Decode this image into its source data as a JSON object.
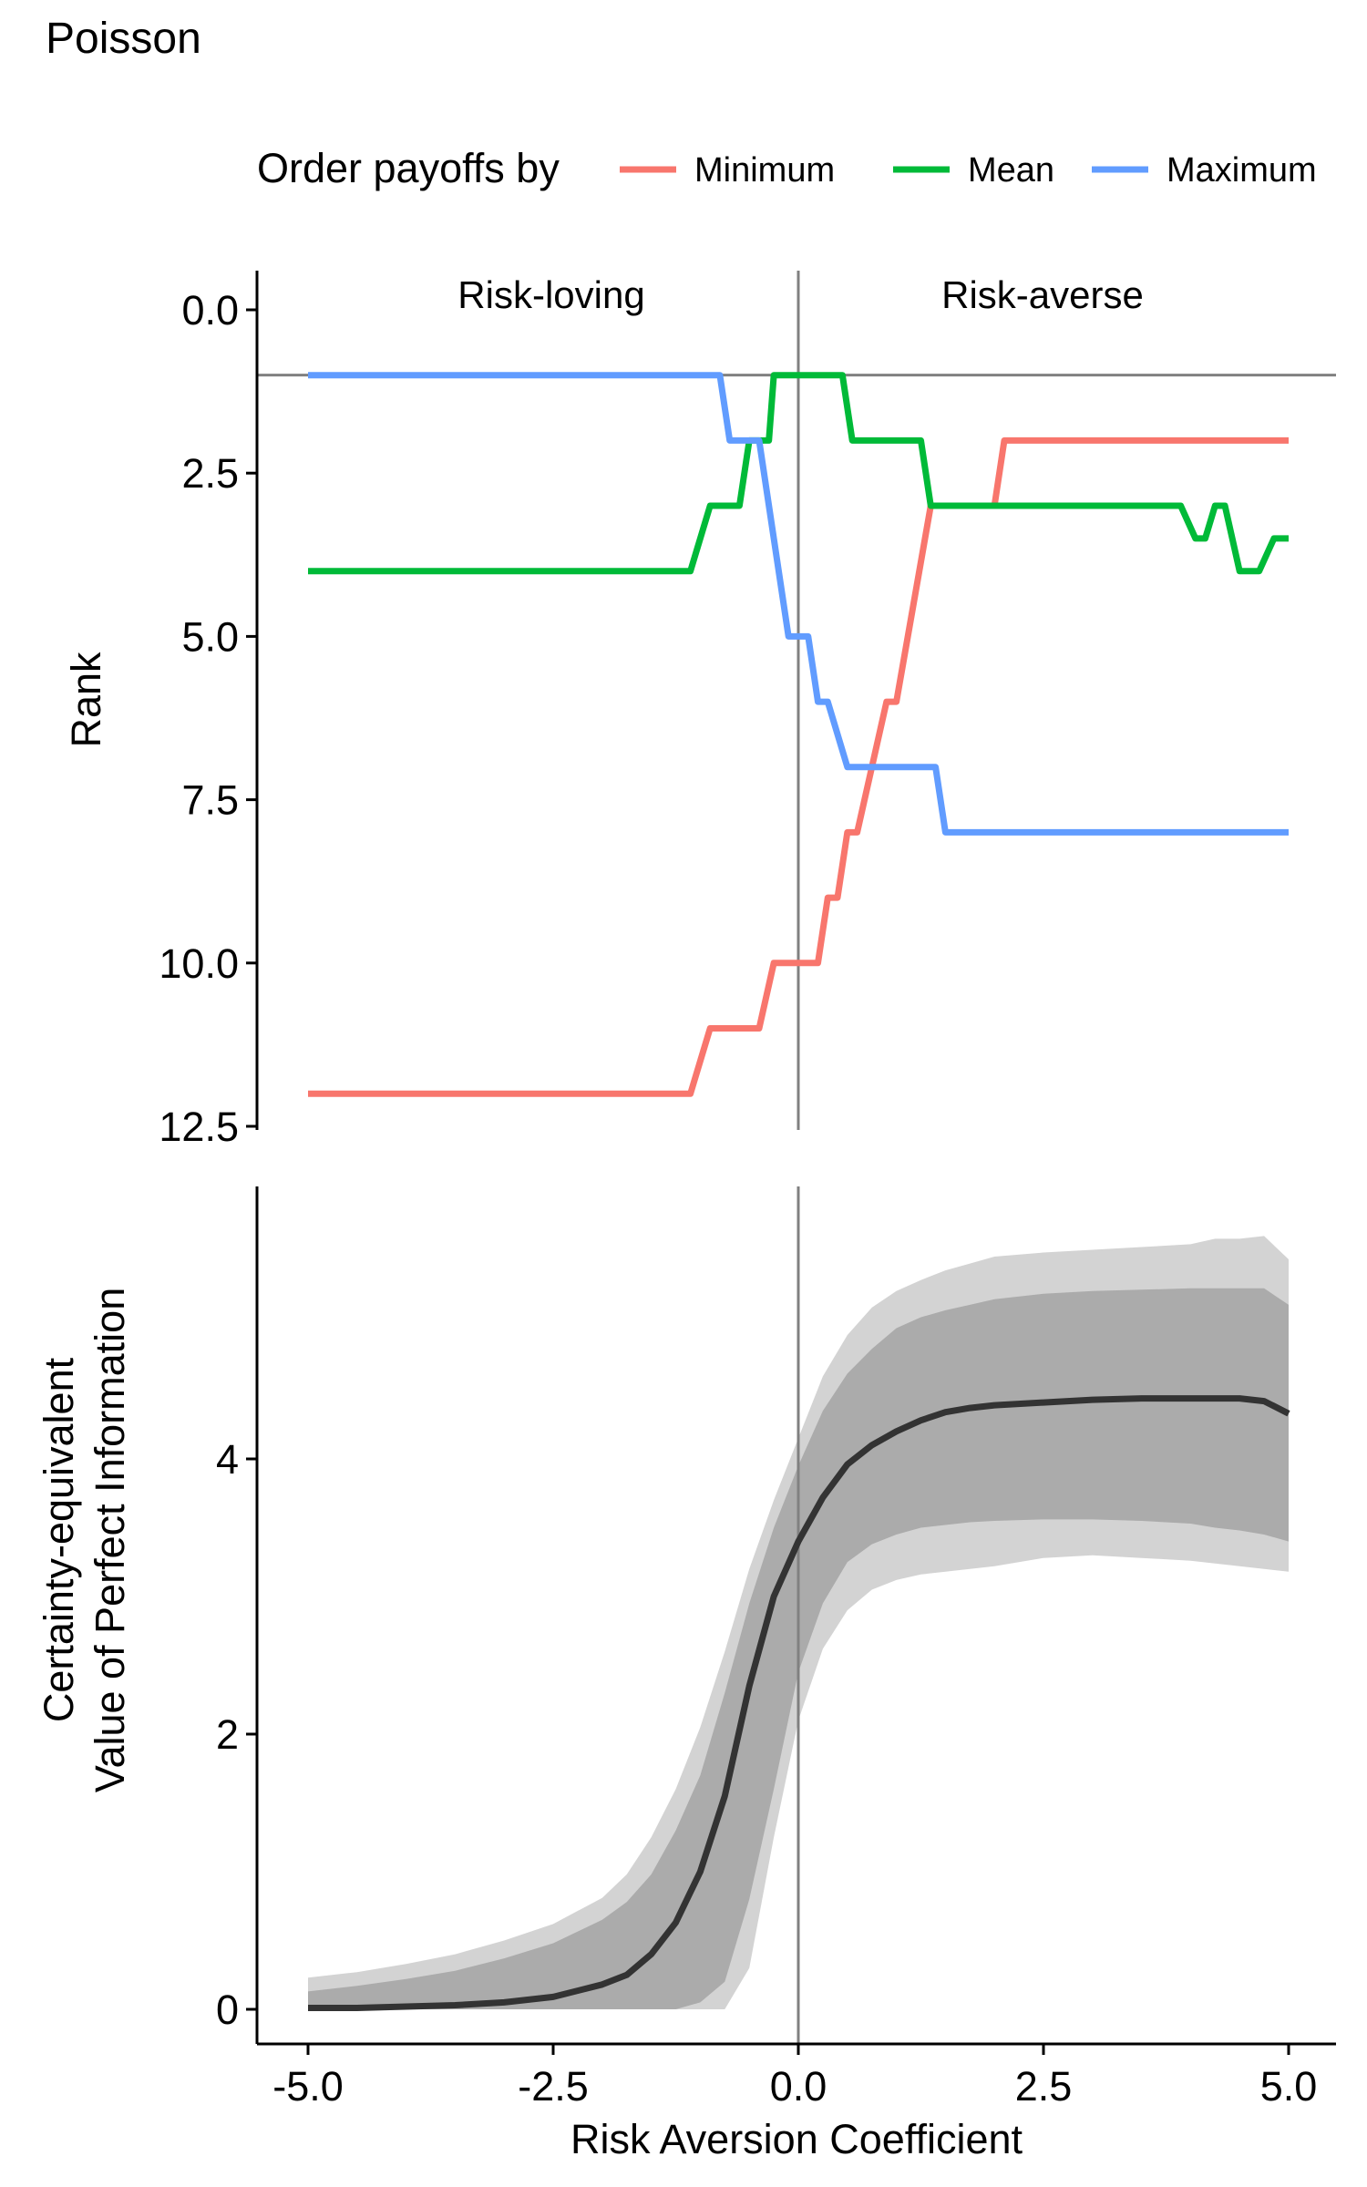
{
  "chart_data": [
    {
      "type": "line",
      "title": "Poisson",
      "legend": {
        "title": "Order payoffs by",
        "position": "top",
        "entries": [
          {
            "name": "Minimum",
            "color": "#F8766D"
          },
          {
            "name": "Mean",
            "color": "#00BA38"
          },
          {
            "name": "Maximum",
            "color": "#619CFF"
          }
        ]
      },
      "xlabel": "",
      "ylabel": "Rank",
      "xlim": [
        -5.0,
        5.0
      ],
      "ylim": [
        0.0,
        12.5
      ],
      "y_reversed": true,
      "yticks": [
        "0.0",
        "2.5",
        "5.0",
        "7.5",
        "10.0",
        "12.5"
      ],
      "annotations": [
        "Risk-loving",
        "Risk-averse"
      ],
      "reference_lines": {
        "vertical_x": 0.0,
        "horizontal_y": 1.0
      },
      "series": [
        {
          "name": "Minimum",
          "color": "#F8766D",
          "points": [
            [
              -5.0,
              12
            ],
            [
              -1.1,
              12
            ],
            [
              -0.9,
              11
            ],
            [
              -0.4,
              11
            ],
            [
              -0.25,
              10
            ],
            [
              0.2,
              10
            ],
            [
              0.3,
              9
            ],
            [
              0.4,
              9
            ],
            [
              0.5,
              8
            ],
            [
              0.6,
              8
            ],
            [
              0.9,
              6
            ],
            [
              1.0,
              6
            ],
            [
              1.35,
              3
            ],
            [
              2.0,
              3
            ],
            [
              2.1,
              2
            ],
            [
              5.0,
              2
            ]
          ]
        },
        {
          "name": "Mean",
          "color": "#00BA38",
          "points": [
            [
              -5.0,
              4
            ],
            [
              -1.1,
              4
            ],
            [
              -0.9,
              3
            ],
            [
              -0.6,
              3
            ],
            [
              -0.5,
              2
            ],
            [
              -0.3,
              2
            ],
            [
              -0.25,
              1
            ],
            [
              0.45,
              1
            ],
            [
              0.55,
              2
            ],
            [
              1.25,
              2
            ],
            [
              1.35,
              3
            ],
            [
              3.9,
              3
            ],
            [
              4.05,
              3.5
            ],
            [
              4.15,
              3.5
            ],
            [
              4.25,
              3
            ],
            [
              4.35,
              3
            ],
            [
              4.5,
              4
            ],
            [
              4.7,
              4
            ],
            [
              4.85,
              3.5
            ],
            [
              5.0,
              3.5
            ]
          ]
        },
        {
          "name": "Maximum",
          "color": "#619CFF",
          "points": [
            [
              -5.0,
              1
            ],
            [
              -0.8,
              1
            ],
            [
              -0.7,
              2
            ],
            [
              -0.4,
              2
            ],
            [
              -0.1,
              5
            ],
            [
              0.1,
              5
            ],
            [
              0.2,
              6
            ],
            [
              0.3,
              6
            ],
            [
              0.5,
              7
            ],
            [
              1.4,
              7
            ],
            [
              1.5,
              8
            ],
            [
              5.0,
              8
            ]
          ]
        }
      ]
    },
    {
      "type": "area",
      "title": "",
      "xlabel": "Risk Aversion Coefficient",
      "ylabel": "Certainty-equivalent\nValue of Perfect Information",
      "ylabel_lines": [
        "Certainty-equivalent",
        "Value of Perfect Information"
      ],
      "xlim": [
        -5.0,
        5.0
      ],
      "xticks": [
        "-5.0",
        "-2.5",
        "0.0",
        "2.5",
        "5.0"
      ],
      "yticks": [
        "0",
        "2",
        "4"
      ],
      "reference_lines": {
        "vertical_x": 0.0
      },
      "x": [
        -5.0,
        -4.5,
        -4.0,
        -3.5,
        -3.0,
        -2.5,
        -2.0,
        -1.75,
        -1.5,
        -1.25,
        -1.0,
        -0.75,
        -0.5,
        -0.25,
        0.0,
        0.25,
        0.5,
        0.75,
        1.0,
        1.25,
        1.5,
        1.75,
        2.0,
        2.5,
        3.0,
        3.5,
        4.0,
        4.25,
        4.5,
        4.75,
        5.0
      ],
      "series": [
        {
          "name": "",
          "role": "outer_band_upper",
          "values": [
            0.23,
            0.27,
            0.33,
            0.4,
            0.5,
            0.62,
            0.81,
            0.98,
            1.25,
            1.6,
            2.05,
            2.6,
            3.2,
            3.7,
            4.15,
            4.6,
            4.9,
            5.1,
            5.22,
            5.3,
            5.37,
            5.42,
            5.47,
            5.5,
            5.52,
            5.54,
            5.56,
            5.6,
            5.6,
            5.62,
            5.45
          ]
        },
        {
          "name": "",
          "role": "inner_band_upper",
          "values": [
            0.13,
            0.17,
            0.22,
            0.28,
            0.37,
            0.48,
            0.65,
            0.78,
            0.98,
            1.3,
            1.7,
            2.3,
            2.95,
            3.5,
            3.95,
            4.35,
            4.62,
            4.8,
            4.95,
            5.03,
            5.08,
            5.12,
            5.16,
            5.2,
            5.22,
            5.23,
            5.24,
            5.24,
            5.24,
            5.24,
            5.12
          ]
        },
        {
          "name": "",
          "role": "central_line",
          "values": [
            0.01,
            0.01,
            0.02,
            0.03,
            0.05,
            0.09,
            0.18,
            0.25,
            0.4,
            0.63,
            1.0,
            1.55,
            2.35,
            3.0,
            3.4,
            3.72,
            3.96,
            4.1,
            4.2,
            4.28,
            4.34,
            4.37,
            4.39,
            4.41,
            4.43,
            4.44,
            4.44,
            4.44,
            4.44,
            4.42,
            4.33
          ]
        },
        {
          "name": "",
          "role": "inner_band_lower",
          "values": [
            0.0,
            0.0,
            0.0,
            0.0,
            0.0,
            0.0,
            0.0,
            0.0,
            0.0,
            0.0,
            0.05,
            0.2,
            0.8,
            1.6,
            2.45,
            2.95,
            3.25,
            3.38,
            3.45,
            3.5,
            3.52,
            3.54,
            3.55,
            3.56,
            3.56,
            3.55,
            3.53,
            3.5,
            3.48,
            3.45,
            3.4
          ]
        },
        {
          "name": "",
          "role": "outer_band_lower",
          "values": [
            0.0,
            0.0,
            0.0,
            0.0,
            0.0,
            0.0,
            0.0,
            0.0,
            0.0,
            0.0,
            0.0,
            0.0,
            0.3,
            1.25,
            2.1,
            2.62,
            2.9,
            3.05,
            3.12,
            3.16,
            3.18,
            3.2,
            3.22,
            3.28,
            3.3,
            3.28,
            3.26,
            3.24,
            3.22,
            3.2,
            3.18
          ]
        }
      ],
      "colors": {
        "outer_band": "#d3d3d3",
        "inner_band": "#ababab",
        "line": "#333333",
        "reference": "#808080"
      }
    }
  ]
}
